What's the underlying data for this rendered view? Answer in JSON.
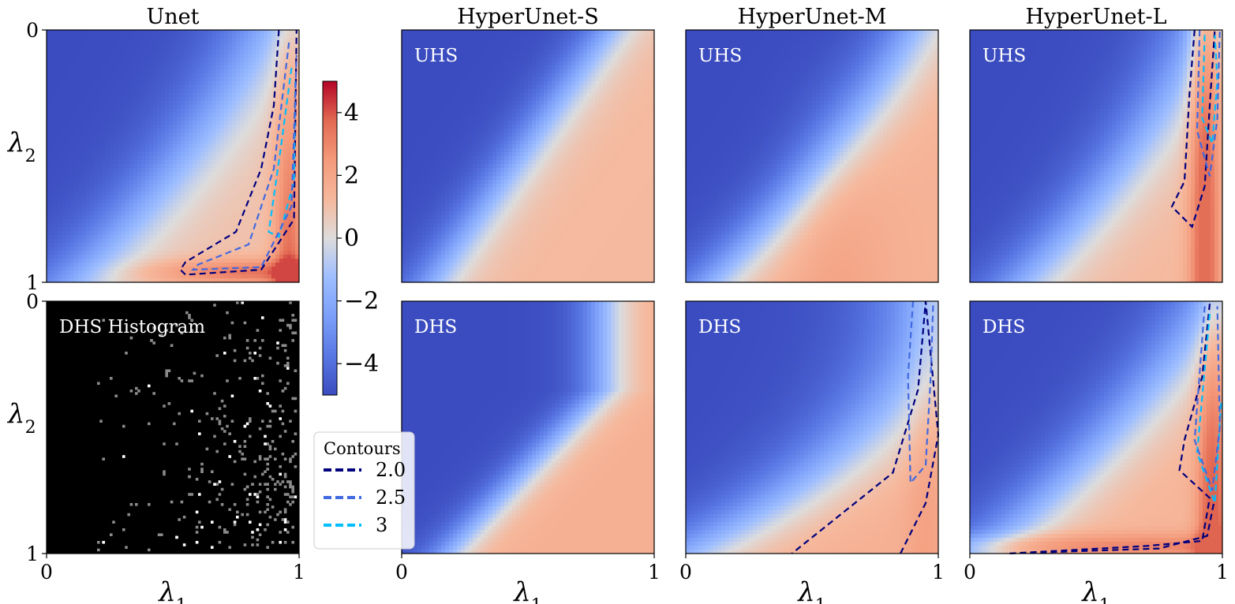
{
  "chart_data": {
    "type": "heatmap",
    "colormap": "coolwarm",
    "colorbar": {
      "range": [
        -5,
        5
      ],
      "ticks": [
        "4",
        "2",
        "0",
        "−2",
        "−4"
      ]
    },
    "panels": [
      {
        "id": "unet-top",
        "title": "Unet",
        "label": "",
        "row": 0,
        "col": 0,
        "kind": "heatmap",
        "model": "unet",
        "contours": [
          2.0,
          2.5,
          3
        ]
      },
      {
        "id": "hist",
        "title": "",
        "label": "DHS Histogram",
        "row": 1,
        "col": 0,
        "kind": "histogram"
      },
      {
        "id": "hus-uhs",
        "title": "HyperUnet-S",
        "label": "UHS",
        "row": 0,
        "col": 1,
        "kind": "heatmap",
        "model": "s-uhs"
      },
      {
        "id": "hus-dhs",
        "title": "",
        "label": "DHS",
        "row": 1,
        "col": 1,
        "kind": "heatmap",
        "model": "s-dhs"
      },
      {
        "id": "hum-uhs",
        "title": "HyperUnet-M",
        "label": "UHS",
        "row": 0,
        "col": 2,
        "kind": "heatmap",
        "model": "m-uhs"
      },
      {
        "id": "hum-dhs",
        "title": "",
        "label": "DHS",
        "row": 1,
        "col": 2,
        "kind": "heatmap",
        "model": "m-dhs",
        "contours": [
          2.0,
          2.5
        ]
      },
      {
        "id": "hul-uhs",
        "title": "HyperUnet-L",
        "label": "UHS",
        "row": 0,
        "col": 3,
        "kind": "heatmap",
        "model": "l-uhs",
        "contours": [
          2.0,
          2.5,
          3
        ]
      },
      {
        "id": "hul-dhs",
        "title": "",
        "label": "DHS",
        "row": 1,
        "col": 3,
        "kind": "heatmap",
        "model": "l-dhs",
        "contours": [
          2.0,
          2.5,
          3
        ]
      }
    ],
    "x_axis": {
      "label": "λ",
      "subscript": "1",
      "range": [
        0,
        1
      ],
      "tick_labels": [
        "0",
        "1"
      ]
    },
    "y_axis": {
      "label": "λ",
      "subscript": "2",
      "range": [
        0,
        1
      ],
      "tick_labels": [
        "0",
        "1"
      ],
      "inverted": true
    },
    "legend": {
      "title": "Contours",
      "placement": "lower-center",
      "items": [
        {
          "label": "2.0",
          "color": "#00007f"
        },
        {
          "label": "2.5",
          "color": "#4169e1"
        },
        {
          "label": "3",
          "color": "#00bfff"
        }
      ]
    }
  }
}
